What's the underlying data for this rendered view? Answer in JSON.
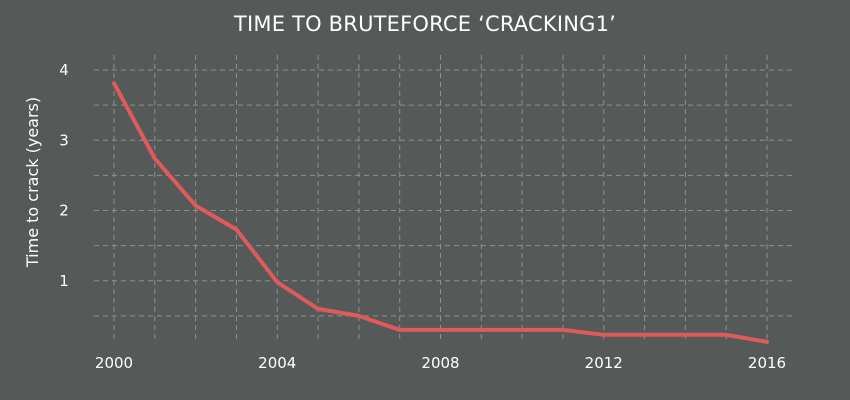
{
  "chart_data": {
    "type": "line",
    "title": "TIME TO BRUTEFORCE ‘CRACKING1’",
    "xlabel": "",
    "ylabel": "Time to crack (years)",
    "xlim": [
      2000,
      2016
    ],
    "ylim": [
      0,
      4
    ],
    "x_ticks": [
      2000,
      2004,
      2008,
      2012,
      2016
    ],
    "y_ticks": [
      1,
      2,
      3,
      4
    ],
    "grid": true,
    "line_color": "#e05a5c",
    "grid_color": "#8c9190",
    "series": [
      {
        "x": [
          2000,
          2001,
          2002,
          2003,
          2004,
          2005,
          2006,
          2007,
          2008,
          2009,
          2010,
          2011,
          2012,
          2013,
          2014,
          2015,
          2016
        ],
        "values": [
          3.81,
          2.74,
          2.07,
          1.73,
          0.98,
          0.6,
          0.5,
          0.3,
          0.3,
          0.3,
          0.3,
          0.3,
          0.23,
          0.23,
          0.23,
          0.23,
          0.13
        ]
      }
    ]
  }
}
